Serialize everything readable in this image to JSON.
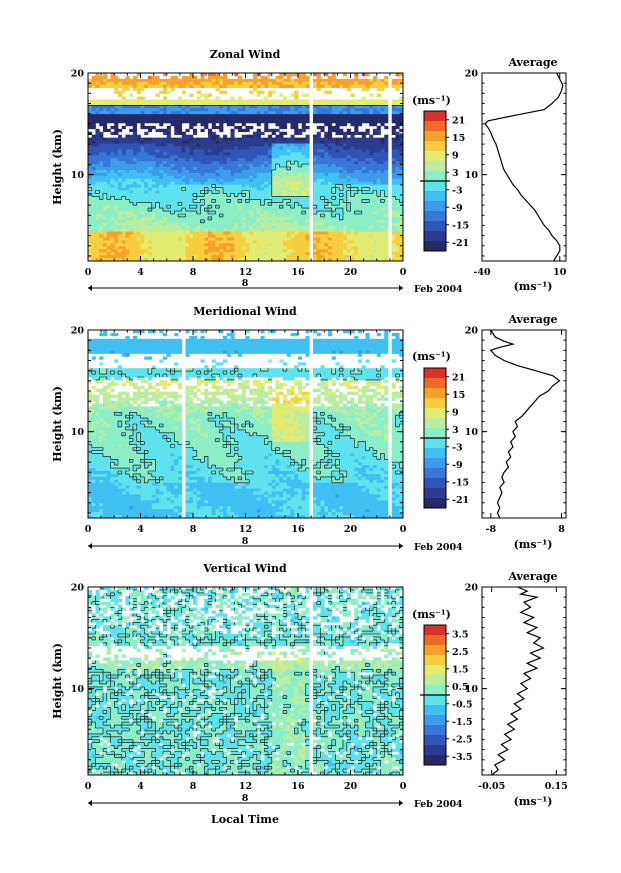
{
  "chart_data": [
    {
      "type": "heatmap",
      "title": "Zonal Wind",
      "xlabel": "",
      "ylabel": "Height (km)",
      "x_ticks": [
        "0",
        "4",
        "8",
        "12",
        "16",
        "20",
        "0"
      ],
      "y_ticks": [
        "10",
        "20"
      ],
      "xlim": [
        0,
        24
      ],
      "ylim": [
        1.5,
        20
      ],
      "date_marker": "8",
      "date_label": "Feb 2004",
      "colorbar": {
        "unit": "(ms⁻¹)",
        "ticks": [
          "21",
          "15",
          "9",
          "3",
          "-3",
          "-9",
          "-15",
          "-21"
        ],
        "range": [
          -24,
          24
        ],
        "colors": [
          "#262a66",
          "#2b3c8e",
          "#2f55b6",
          "#3777d8",
          "#3d9cea",
          "#3fc0f2",
          "#5ee3ee",
          "#8ceec7",
          "#bbeda1",
          "#e2ec70",
          "#f5cf40",
          "#f7a02c",
          "#ee6a26",
          "#d9302a"
        ]
      },
      "zero_break": 0,
      "gap_hours": [
        17.0,
        23.0
      ]
    },
    {
      "type": "line",
      "title": "Average",
      "xlabel": "(ms⁻¹)",
      "ylabel": "",
      "x_ticks": [
        "-40",
        "10"
      ],
      "y_ticks": [
        "10",
        "20"
      ],
      "xlim": [
        -40,
        14
      ],
      "ylim": [
        1.5,
        20
      ],
      "x": [
        6,
        8,
        10,
        10,
        8,
        5,
        3,
        0,
        -2,
        -4,
        -6,
        -9,
        -12,
        -15,
        -17,
        -20,
        -22,
        -24,
        -26,
        -27,
        -28,
        -29,
        -30,
        -31,
        -32,
        -33,
        -34,
        -35,
        -36,
        -38,
        -36,
        -20,
        0,
        5,
        9,
        11,
        12,
        10,
        8
      ],
      "y": [
        1.5,
        2.0,
        2.5,
        3.0,
        3.5,
        4.0,
        4.5,
        5.0,
        5.5,
        6.0,
        6.5,
        7.0,
        7.5,
        8.0,
        8.5,
        9.0,
        9.5,
        10.0,
        10.5,
        11.0,
        11.5,
        12.0,
        12.5,
        13.0,
        13.3,
        13.6,
        14.0,
        14.3,
        14.6,
        15.0,
        15.3,
        15.8,
        16.4,
        17.0,
        17.6,
        18.2,
        18.8,
        19.4,
        20.0
      ]
    },
    {
      "type": "heatmap",
      "title": "Meridional Wind",
      "xlabel": "",
      "ylabel": "Height (km)",
      "x_ticks": [
        "0",
        "4",
        "8",
        "12",
        "16",
        "20",
        "0"
      ],
      "y_ticks": [
        "10",
        "20"
      ],
      "xlim": [
        0,
        24
      ],
      "ylim": [
        1.5,
        20
      ],
      "date_marker": "8",
      "date_label": "Feb 2004",
      "colorbar": {
        "unit": "(ms⁻¹)",
        "ticks": [
          "21",
          "15",
          "9",
          "3",
          "-3",
          "-9",
          "-15",
          "-21"
        ],
        "range": [
          -24,
          24
        ],
        "colors": [
          "#262a66",
          "#2b3c8e",
          "#2f55b6",
          "#3777d8",
          "#3d9cea",
          "#3fc0f2",
          "#5ee3ee",
          "#8ceec7",
          "#bbeda1",
          "#e2ec70",
          "#f5cf40",
          "#f7a02c",
          "#ee6a26",
          "#d9302a"
        ]
      },
      "zero_break": 0,
      "gap_hours": [
        7.3,
        17.0,
        23.0
      ]
    },
    {
      "type": "line",
      "title": "Average",
      "xlabel": "(ms⁻¹)",
      "ylabel": "",
      "x_ticks": [
        "-8",
        "8"
      ],
      "y_ticks": [
        "10",
        "20"
      ],
      "xlim": [
        -10,
        9
      ],
      "ylim": [
        1.5,
        20
      ],
      "x": [
        -6,
        -6.5,
        -6,
        -6.5,
        -6,
        -5.5,
        -6,
        -5,
        -5.5,
        -5,
        -4,
        -4.5,
        -3.5,
        -4,
        -3,
        -3.5,
        -2.5,
        -3,
        -2,
        -2.5,
        -1,
        0,
        1,
        2,
        3,
        5,
        6,
        7.5,
        6,
        2,
        -2,
        -5,
        -7,
        -8,
        -6,
        -3,
        -5,
        -7,
        -8
      ],
      "y": [
        1.5,
        2.0,
        2.5,
        3.0,
        3.5,
        4.0,
        4.5,
        5.0,
        5.5,
        6.0,
        6.5,
        7.0,
        7.5,
        8.0,
        8.5,
        9.0,
        9.5,
        10.0,
        10.5,
        11.0,
        11.5,
        12.0,
        12.5,
        13.0,
        13.5,
        14.0,
        14.5,
        15.0,
        15.5,
        16.0,
        16.5,
        17.0,
        17.5,
        18.0,
        18.3,
        18.6,
        18.9,
        19.3,
        20.0
      ]
    },
    {
      "type": "heatmap",
      "title": "Vertical Wind",
      "xlabel": "Local Time",
      "ylabel": "Height (km)",
      "x_ticks": [
        "0",
        "4",
        "8",
        "12",
        "16",
        "20",
        "0"
      ],
      "y_ticks": [
        "10",
        "20"
      ],
      "xlim": [
        0,
        24
      ],
      "ylim": [
        1.5,
        20
      ],
      "date_marker": "8",
      "date_label": "Feb 2004",
      "colorbar": {
        "unit": "(ms⁻¹)",
        "ticks": [
          "3.5",
          "2.5",
          "1.5",
          "0.5",
          "-0.5",
          "-1.5",
          "-2.5",
          "-3.5"
        ],
        "range": [
          -4,
          4
        ],
        "colors": [
          "#262a66",
          "#2b3c8e",
          "#2f55b6",
          "#3777d8",
          "#3d9cea",
          "#3fc0f2",
          "#5ee3ee",
          "#8ceec7",
          "#bbeda1",
          "#e2ec70",
          "#f5cf40",
          "#f7a02c",
          "#ee6a26",
          "#d9302a"
        ]
      },
      "zero_break": 0,
      "gap_hours": [
        17.0
      ]
    },
    {
      "type": "line",
      "title": "Average",
      "xlabel": "(ms⁻¹)",
      "ylabel": "",
      "x_ticks": [
        "-0.05",
        "0.15"
      ],
      "y_ticks": [
        "10",
        "20"
      ],
      "xlim": [
        -0.08,
        0.18
      ],
      "ylim": [
        1.5,
        20
      ],
      "x": [
        -0.05,
        -0.03,
        -0.04,
        -0.01,
        -0.03,
        0.0,
        -0.02,
        0.01,
        -0.01,
        0.02,
        0.0,
        0.03,
        0.01,
        0.04,
        0.02,
        0.05,
        0.03,
        0.06,
        0.04,
        0.07,
        0.05,
        0.09,
        0.06,
        0.1,
        0.07,
        0.11,
        0.08,
        0.1,
        0.06,
        0.09,
        0.05,
        0.08,
        0.04,
        0.07,
        0.05,
        0.09,
        0.04,
        0.06,
        0.03
      ],
      "y": [
        1.5,
        2.0,
        2.5,
        3.0,
        3.5,
        4.0,
        4.5,
        5.0,
        5.5,
        6.0,
        6.5,
        7.0,
        7.5,
        8.0,
        8.5,
        9.0,
        9.5,
        10.0,
        10.5,
        11.0,
        11.5,
        12.0,
        12.5,
        13.0,
        13.5,
        14.0,
        14.5,
        15.0,
        15.5,
        16.0,
        16.5,
        17.0,
        17.5,
        18.0,
        18.5,
        19.0,
        19.3,
        19.6,
        20.0
      ]
    }
  ]
}
